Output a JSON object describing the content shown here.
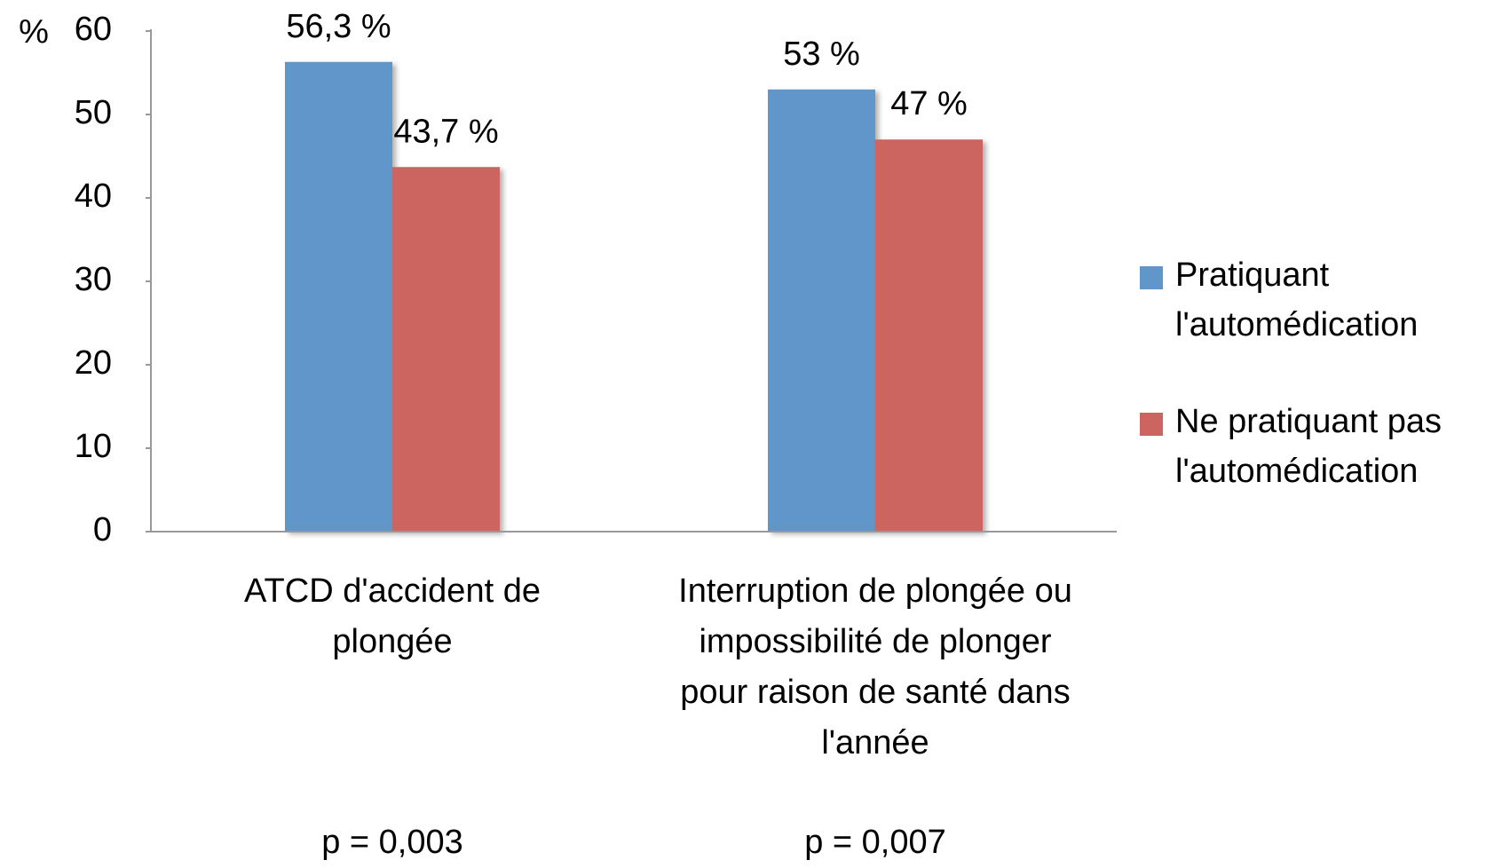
{
  "chart_data": {
    "type": "bar",
    "y_axis_label": "%",
    "categories": [
      [
        "ATCD d'accident de",
        "plongée"
      ],
      [
        "Interruption de plongée ou",
        "impossibilité de plonger",
        "pour raison de santé dans",
        "l'année"
      ]
    ],
    "series": [
      {
        "name": "Pratiquant l'automédication",
        "color": "#6096c9",
        "values": [
          56.3,
          53
        ],
        "value_labels": [
          "56,3 %",
          "53 %"
        ]
      },
      {
        "name": "Ne pratiquant pas l'automédication",
        "color": "#cc6560",
        "values": [
          43.7,
          47
        ],
        "value_labels": [
          "43,7 %",
          "47 %"
        ]
      }
    ],
    "annotations": [
      "p = 0,003",
      "p = 0,007"
    ],
    "ylim": [
      0,
      60
    ],
    "yticks": [
      0,
      10,
      20,
      30,
      40,
      50,
      60
    ],
    "grid": false,
    "legend": "right"
  }
}
